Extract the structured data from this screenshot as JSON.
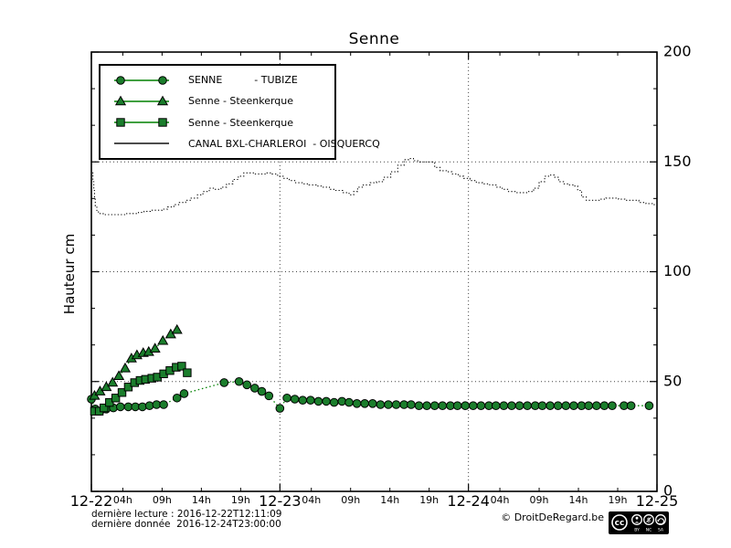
{
  "title": "Senne",
  "y_axis": {
    "label": "Hauteur cm",
    "tick_values": [
      0,
      50,
      100,
      150,
      200
    ],
    "tick_labels": [
      "0",
      "50",
      "100",
      "150",
      "200"
    ],
    "range": [
      0,
      200
    ],
    "minor_divisions": 3
  },
  "x_axis": {
    "range_hours": [
      0,
      72
    ],
    "day_ticks": [
      {
        "label": "12-22",
        "hour": 0
      },
      {
        "label": "12-23",
        "hour": 24
      },
      {
        "label": "12-24",
        "hour": 48
      },
      {
        "label": "12-25",
        "hour": 72
      }
    ],
    "hour_ticks": [
      {
        "label": "04h",
        "offset": 4
      },
      {
        "label": "09h",
        "offset": 9
      },
      {
        "label": "14h",
        "offset": 14
      },
      {
        "label": "19h",
        "offset": 19
      }
    ]
  },
  "legend": {
    "entries": [
      {
        "label": "SENNE          - TUBIZE",
        "marker": "circle"
      },
      {
        "label": "Senne - Steenkerque",
        "marker": "triangle"
      },
      {
        "label": "Senne - Steenkerque",
        "marker": "square"
      },
      {
        "label": "CANAL BXL-CHARLEROI  - OISQUERCQ",
        "marker": "line"
      }
    ]
  },
  "footer": {
    "line1": "dernière lecture : 2016-12-22T12:11:09",
    "line2": "dernière donnée  2016-12-24T23:00:00",
    "credit": "© DroitDeRegard.be",
    "license_labels": [
      "BY",
      "NC",
      "SA"
    ]
  },
  "colors": {
    "series_green": "#008000",
    "marker_fill": "#1b7e2c",
    "marker_edge": "#000000",
    "canal": "#111111",
    "grid": "#444444",
    "axis": "#000000",
    "background": "#ffffff"
  },
  "chart_data": {
    "type": "line",
    "title": "Senne",
    "xlabel": "",
    "ylabel": "Hauteur cm",
    "x_unit": "hours since 2016-12-22T00:00",
    "xlim": [
      0,
      72
    ],
    "ylim": [
      0,
      200
    ],
    "grid": "dotted vertical lines at day boundaries, dotted horizontal lines every 50 cm",
    "legend_position": "upper left",
    "series": [
      {
        "name": "SENNE - TUBIZE",
        "marker": "circle",
        "line_style": "dotted",
        "color": "#008000",
        "points": [
          [
            0,
            42
          ],
          [
            0.5,
            37.5
          ],
          [
            1.1,
            36.5
          ],
          [
            1.9,
            37.5
          ],
          [
            2.8,
            38
          ],
          [
            3.7,
            38.5
          ],
          [
            4.7,
            38.5
          ],
          [
            5.6,
            38.5
          ],
          [
            6.5,
            38.5
          ],
          [
            7.4,
            39
          ],
          [
            8.3,
            39.5
          ],
          [
            9.2,
            39.5
          ],
          [
            10.9,
            42.5
          ],
          [
            11.8,
            44.5
          ],
          [
            16.9,
            49.5
          ],
          [
            18.8,
            50
          ],
          [
            19.8,
            48.5
          ],
          [
            20.8,
            47
          ],
          [
            21.7,
            45.5
          ],
          [
            22.6,
            43.5
          ],
          [
            24,
            37.8
          ],
          [
            24.9,
            42.5
          ],
          [
            25.9,
            42
          ],
          [
            26.9,
            41.5
          ],
          [
            27.9,
            41.5
          ],
          [
            28.9,
            41
          ],
          [
            29.9,
            41
          ],
          [
            30.9,
            40.5
          ],
          [
            31.9,
            41
          ],
          [
            32.8,
            40.5
          ],
          [
            33.8,
            40
          ],
          [
            34.8,
            40
          ],
          [
            35.8,
            40
          ],
          [
            36.8,
            39.5
          ],
          [
            37.8,
            39.5
          ],
          [
            38.8,
            39.5
          ],
          [
            39.8,
            39.5
          ],
          [
            40.7,
            39.5
          ],
          [
            41.7,
            39
          ],
          [
            42.7,
            39
          ],
          [
            43.7,
            39
          ],
          [
            44.7,
            39
          ],
          [
            45.7,
            39
          ],
          [
            46.6,
            39
          ],
          [
            47.6,
            39
          ],
          [
            48.6,
            39
          ],
          [
            49.6,
            39
          ],
          [
            50.6,
            39
          ],
          [
            51.5,
            39
          ],
          [
            52.5,
            39
          ],
          [
            53.5,
            39
          ],
          [
            54.5,
            39
          ],
          [
            55.5,
            39
          ],
          [
            56.5,
            39
          ],
          [
            57.4,
            39
          ],
          [
            58.4,
            39
          ],
          [
            59.4,
            39
          ],
          [
            60.4,
            39
          ],
          [
            61.4,
            39
          ],
          [
            62.4,
            39
          ],
          [
            63.3,
            39
          ],
          [
            64.3,
            39
          ],
          [
            65.3,
            39
          ],
          [
            66.3,
            39
          ],
          [
            67.8,
            39
          ],
          [
            68.7,
            39
          ],
          [
            71,
            39
          ]
        ]
      },
      {
        "name": "Senne - Steenkerque",
        "marker": "triangle",
        "line_style": "dotted",
        "color": "#008000",
        "points": [
          [
            0.4,
            43.5
          ],
          [
            1.1,
            45.5
          ],
          [
            1.9,
            47.5
          ],
          [
            2.7,
            49.5
          ],
          [
            3.5,
            52.5
          ],
          [
            4.3,
            56
          ],
          [
            5.1,
            60.5
          ],
          [
            5.8,
            62
          ],
          [
            6.6,
            63
          ],
          [
            7.3,
            63.5
          ],
          [
            8.1,
            65
          ],
          [
            9.1,
            68.5
          ],
          [
            10.1,
            71.5
          ],
          [
            10.9,
            73.5
          ]
        ]
      },
      {
        "name": "Senne - Steenkerque",
        "marker": "square",
        "line_style": "dotted",
        "color": "#008000",
        "points": [
          [
            0.4,
            36.5
          ],
          [
            1.0,
            36.5
          ],
          [
            1.6,
            38
          ],
          [
            2.3,
            40.5
          ],
          [
            3.1,
            42.5
          ],
          [
            3.9,
            45
          ],
          [
            4.7,
            47.5
          ],
          [
            5.5,
            49.5
          ],
          [
            6.2,
            50.5
          ],
          [
            6.9,
            51
          ],
          [
            7.7,
            51.5
          ],
          [
            8.4,
            52
          ],
          [
            9.2,
            53.5
          ],
          [
            10,
            55
          ],
          [
            10.8,
            56.5
          ],
          [
            11.5,
            57
          ],
          [
            12.2,
            54
          ]
        ]
      },
      {
        "name": "CANAL BXL-CHARLEROI - OISQUERCQ",
        "marker": "none",
        "line_style": "step-dotted",
        "color": "#111111",
        "points": [
          [
            0.1,
            145
          ],
          [
            0.2,
            141
          ],
          [
            0.3,
            137
          ],
          [
            0.4,
            133
          ],
          [
            0.5,
            130
          ],
          [
            0.7,
            127.5
          ],
          [
            0.9,
            126.5
          ],
          [
            1.5,
            126
          ],
          [
            2.2,
            126
          ],
          [
            3,
            126
          ],
          [
            3.7,
            126
          ],
          [
            4.5,
            126.5
          ],
          [
            5.2,
            126.5
          ],
          [
            6,
            127
          ],
          [
            6.7,
            127.5
          ],
          [
            7.5,
            128
          ],
          [
            8.2,
            128
          ],
          [
            9,
            128.5
          ],
          [
            9.7,
            129.5
          ],
          [
            10.5,
            130.5
          ],
          [
            11.2,
            131.5
          ],
          [
            12,
            132.5
          ],
          [
            12.7,
            133.5
          ],
          [
            13.5,
            135
          ],
          [
            14.2,
            136.5
          ],
          [
            15,
            138
          ],
          [
            15.7,
            137.5
          ],
          [
            16.5,
            138.5
          ],
          [
            17.2,
            140
          ],
          [
            18,
            142
          ],
          [
            18.7,
            143.5
          ],
          [
            19.4,
            145
          ],
          [
            20.1,
            145
          ],
          [
            20.8,
            144.5
          ],
          [
            21.5,
            144.5
          ],
          [
            22.2,
            145
          ],
          [
            23,
            144.5
          ],
          [
            23.7,
            143.5
          ],
          [
            24.4,
            142.5
          ],
          [
            25.2,
            141.5
          ],
          [
            26,
            140.5
          ],
          [
            26.9,
            140
          ],
          [
            27.7,
            139.5
          ],
          [
            28.6,
            139
          ],
          [
            29.4,
            138.5
          ],
          [
            30.3,
            137.5
          ],
          [
            31.1,
            137
          ],
          [
            32,
            136
          ],
          [
            32.8,
            135
          ],
          [
            33.4,
            136.5
          ],
          [
            33.9,
            138.5
          ],
          [
            34.6,
            139.5
          ],
          [
            35.5,
            140.5
          ],
          [
            36.3,
            141
          ],
          [
            37.2,
            143
          ],
          [
            38.1,
            145.5
          ],
          [
            39,
            148.5
          ],
          [
            39.8,
            151
          ],
          [
            40.4,
            151.5
          ],
          [
            41,
            150.5
          ],
          [
            41.7,
            150
          ],
          [
            42.4,
            150
          ],
          [
            43.1,
            150
          ],
          [
            43.7,
            147.5
          ],
          [
            44.4,
            146
          ],
          [
            45.2,
            145.5
          ],
          [
            45.9,
            144.5
          ],
          [
            46.7,
            143.5
          ],
          [
            47.4,
            142.5
          ],
          [
            48.2,
            141.5
          ],
          [
            49,
            140.5
          ],
          [
            49.8,
            140
          ],
          [
            50.7,
            139.5
          ],
          [
            51.5,
            138.5
          ],
          [
            52.3,
            137.5
          ],
          [
            53.1,
            136.5
          ],
          [
            54,
            136
          ],
          [
            54.8,
            136
          ],
          [
            55.6,
            136.5
          ],
          [
            56.3,
            138
          ],
          [
            57,
            141
          ],
          [
            57.7,
            143.5
          ],
          [
            58.3,
            144
          ],
          [
            58.9,
            143
          ],
          [
            59.5,
            141
          ],
          [
            60.1,
            140
          ],
          [
            60.7,
            139.5
          ],
          [
            61.3,
            139
          ],
          [
            61.9,
            137
          ],
          [
            62.4,
            134
          ],
          [
            63,
            132.5
          ],
          [
            63.8,
            132.5
          ],
          [
            64.7,
            133
          ],
          [
            65.5,
            133.5
          ],
          [
            66.3,
            133.5
          ],
          [
            67.1,
            133
          ],
          [
            67.9,
            132.5
          ],
          [
            68.8,
            132.5
          ],
          [
            69.7,
            131.5
          ],
          [
            70.6,
            131
          ],
          [
            71.4,
            130.5
          ],
          [
            71.9,
            130.5
          ]
        ]
      }
    ]
  }
}
